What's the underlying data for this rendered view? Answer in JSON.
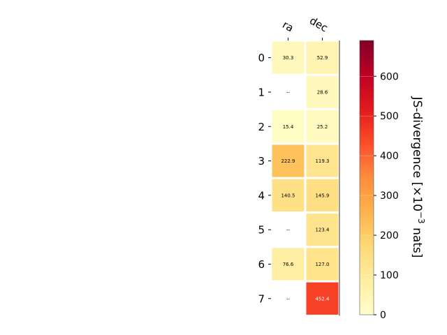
{
  "chart_data": {
    "type": "heatmap",
    "columns": [
      "ra",
      "dec"
    ],
    "rows": [
      "0",
      "1",
      "2",
      "3",
      "4",
      "5",
      "6",
      "7"
    ],
    "values": [
      [
        30.3,
        52.9
      ],
      [
        null,
        28.6
      ],
      [
        15.4,
        25.2
      ],
      [
        222.9,
        119.3
      ],
      [
        140.5,
        145.9
      ],
      [
        null,
        123.4
      ],
      [
        76.6,
        127.0
      ],
      [
        null,
        452.4
      ]
    ],
    "cell_labels": [
      [
        "30.3",
        "52.9"
      ],
      [
        "--",
        "28.6"
      ],
      [
        "15.4",
        "25.2"
      ],
      [
        "222.9",
        "119.3"
      ],
      [
        "140.5",
        "145.9"
      ],
      [
        "--",
        "123.4"
      ],
      [
        "76.6",
        "127.0"
      ],
      [
        "--",
        "452.4"
      ]
    ],
    "missing_label": "--",
    "colorbar": {
      "label_main": "JS-divergence [×10",
      "label_exp": "−3",
      "label_unit": " nats]",
      "range": [
        0,
        690
      ],
      "ticks": [
        0,
        100,
        200,
        300,
        400,
        500,
        600
      ],
      "tick_labels": [
        "0",
        "100",
        "200",
        "300",
        "400",
        "500",
        "600"
      ],
      "colormap": "YlOrRd"
    }
  }
}
